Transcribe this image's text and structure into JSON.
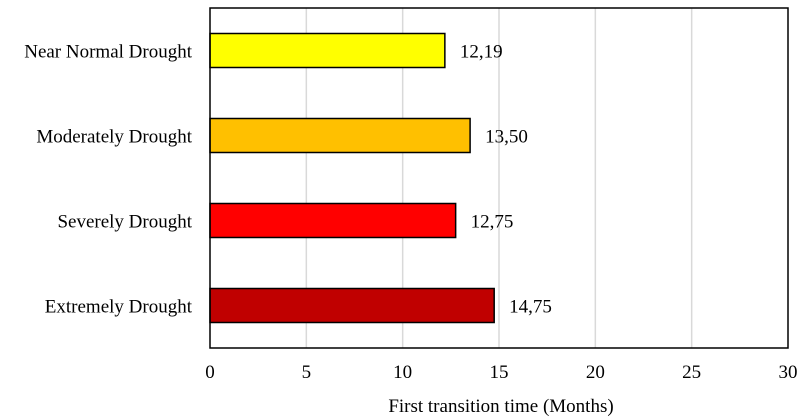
{
  "chart_data": {
    "type": "bar",
    "orientation": "horizontal",
    "categories": [
      "Near Normal Drought",
      "Moderately Drought",
      "Severely Drought",
      "Extremely Drought"
    ],
    "values": [
      12.19,
      13.5,
      12.75,
      14.75
    ],
    "data_labels": [
      "12,19",
      "13,50",
      "12,75",
      "14,75"
    ],
    "bar_colors": [
      "#FFFF00",
      "#FFC000",
      "#FF0000",
      "#C00000"
    ],
    "xlabel": "First transition time (Months)",
    "ylabel": "",
    "title": "",
    "xlim": [
      0,
      30
    ],
    "xticks": [
      0,
      5,
      10,
      15,
      20,
      25,
      30
    ],
    "xtick_labels": [
      "0",
      "5",
      "10",
      "15",
      "20",
      "25",
      "30"
    ],
    "grid": "vertical",
    "gridline_color": "#D9D9D9",
    "bar_outline_color": "#000000",
    "legend": "none"
  }
}
